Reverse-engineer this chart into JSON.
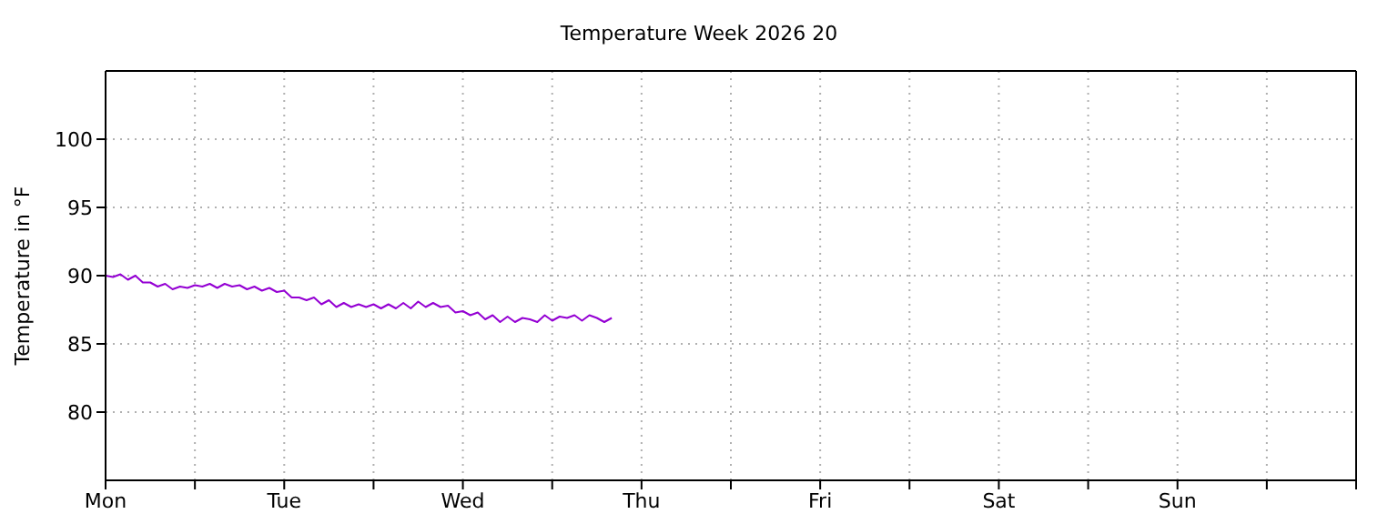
{
  "chart_data": {
    "type": "line",
    "title": "Temperature Week 2026 20",
    "ylabel": "Temperature in °F",
    "categories": [
      "Mon",
      null,
      null,
      null,
      null,
      null,
      null,
      null,
      null,
      null,
      null,
      null,
      null,
      null,
      null,
      null,
      null,
      null,
      null,
      null,
      null,
      null,
      null,
      null,
      "Tue",
      null,
      null,
      null,
      null,
      null,
      null,
      null,
      null,
      null,
      null,
      null,
      null,
      null,
      null,
      null,
      null,
      null,
      null,
      null,
      null,
      null,
      null,
      null,
      "Wed",
      null,
      null,
      null,
      null,
      null,
      null,
      null,
      null,
      null,
      null,
      null,
      null,
      null,
      null,
      null,
      null,
      null,
      null,
      null,
      null,
      null,
      null,
      null,
      "Thu",
      null,
      null,
      null,
      null,
      null,
      null,
      null,
      null,
      null,
      null,
      null,
      null,
      null,
      null,
      null,
      null,
      null,
      null,
      null,
      null,
      null,
      null,
      null,
      "Fri",
      null,
      null,
      null,
      null,
      null,
      null,
      null,
      null,
      null,
      null,
      null,
      null,
      null,
      null,
      null,
      null,
      null,
      null,
      null,
      null,
      null,
      null,
      null,
      "Sat",
      null,
      null,
      null,
      null,
      null,
      null,
      null,
      null,
      null,
      null,
      null,
      null,
      null,
      null,
      null,
      null,
      null,
      null,
      null,
      null,
      null,
      null,
      null,
      "Sun",
      null,
      null,
      null,
      null,
      null,
      null,
      null,
      null,
      null,
      null,
      null,
      null,
      null,
      null,
      null,
      null,
      null,
      null,
      null,
      null,
      null,
      null,
      null
    ],
    "ylim": [
      75,
      105
    ],
    "yticks": [
      80,
      85,
      90,
      95,
      100
    ],
    "grid": true,
    "marker": "none",
    "line_style": "solid",
    "series": [
      {
        "color": "#9400d3",
        "values": [
          90.0,
          89.9,
          90.1,
          89.7,
          90.0,
          89.5,
          89.5,
          89.2,
          89.4,
          89.0,
          89.2,
          89.1,
          89.3,
          89.2,
          89.4,
          89.1,
          89.4,
          89.2,
          89.3,
          89.0,
          89.2,
          88.9,
          89.1,
          88.8,
          88.9,
          88.4,
          88.4,
          88.2,
          88.4,
          87.9,
          88.2,
          87.7,
          88.0,
          87.7,
          87.9,
          87.7,
          87.9,
          87.6,
          87.9,
          87.6,
          88.0,
          87.6,
          88.1,
          87.7,
          88.0,
          87.7,
          87.8,
          87.3,
          87.4,
          87.1,
          87.3,
          86.8,
          87.1,
          86.6,
          87.0,
          86.6,
          86.9,
          86.8,
          86.6,
          87.1,
          86.7,
          87.0,
          86.9,
          87.1,
          86.7,
          87.1,
          86.9,
          86.6,
          86.9,
          null,
          null,
          null,
          null,
          null,
          null,
          null,
          null,
          null,
          null,
          null,
          null,
          null,
          null,
          null,
          null,
          null,
          null,
          null,
          null,
          null,
          null,
          null,
          null,
          null,
          null,
          null,
          null,
          null,
          null,
          null,
          null,
          null,
          null,
          null,
          null,
          null,
          null,
          null,
          null,
          null,
          null,
          null,
          null,
          null,
          null,
          null,
          null,
          null,
          null,
          null,
          null,
          null,
          null,
          null,
          null,
          null,
          null,
          null,
          null,
          null,
          null,
          null,
          null,
          null,
          null,
          null,
          null,
          null,
          null,
          null,
          null,
          null,
          null,
          null,
          null,
          null,
          null,
          null,
          null,
          null,
          null,
          null,
          null,
          null,
          null,
          null,
          null,
          null,
          null,
          null,
          null,
          null,
          null,
          null,
          null,
          null,
          null,
          null
        ]
      }
    ]
  }
}
